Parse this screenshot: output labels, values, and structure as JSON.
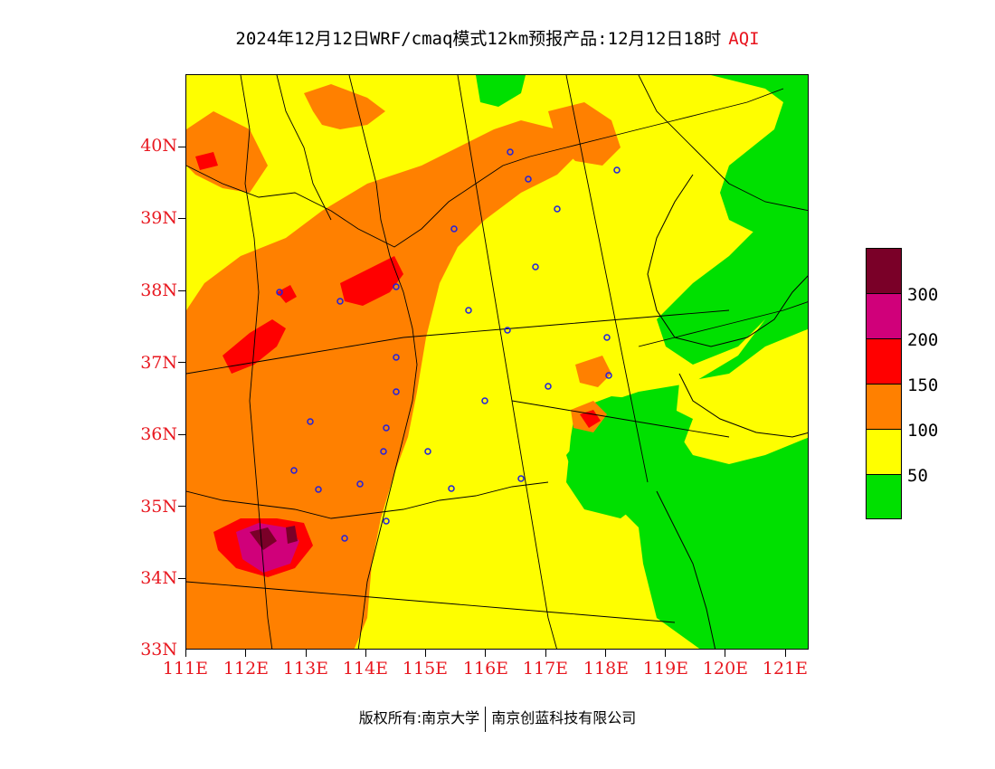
{
  "title": {
    "main": "2024年12月12日WRF/cmaq模式12km预报产品:12月12日18时",
    "product": "AQI"
  },
  "map": {
    "lat_labels": [
      "40N",
      "39N",
      "38N",
      "37N",
      "36N",
      "35N",
      "34N",
      "33N"
    ],
    "lon_labels": [
      "111E",
      "112E",
      "113E",
      "114E",
      "115E",
      "116E",
      "117E",
      "118E",
      "119E",
      "120E",
      "121E"
    ],
    "lat_range": [
      33,
      41
    ],
    "lon_range": [
      111,
      121.4
    ]
  },
  "legend": {
    "colors": [
      "#7a0028",
      "#d0007a",
      "#ff0000",
      "#ff8000",
      "#ffff00",
      "#00e000"
    ],
    "labels": [
      "300",
      "200",
      "150",
      "100",
      "50"
    ],
    "categories": [
      "> 300",
      "200-300",
      "150-200",
      "100-150",
      "50-100",
      "0-50"
    ]
  },
  "footer": {
    "left": "版权所有:南京大学",
    "right": "南京创蓝科技有限公司"
  }
}
